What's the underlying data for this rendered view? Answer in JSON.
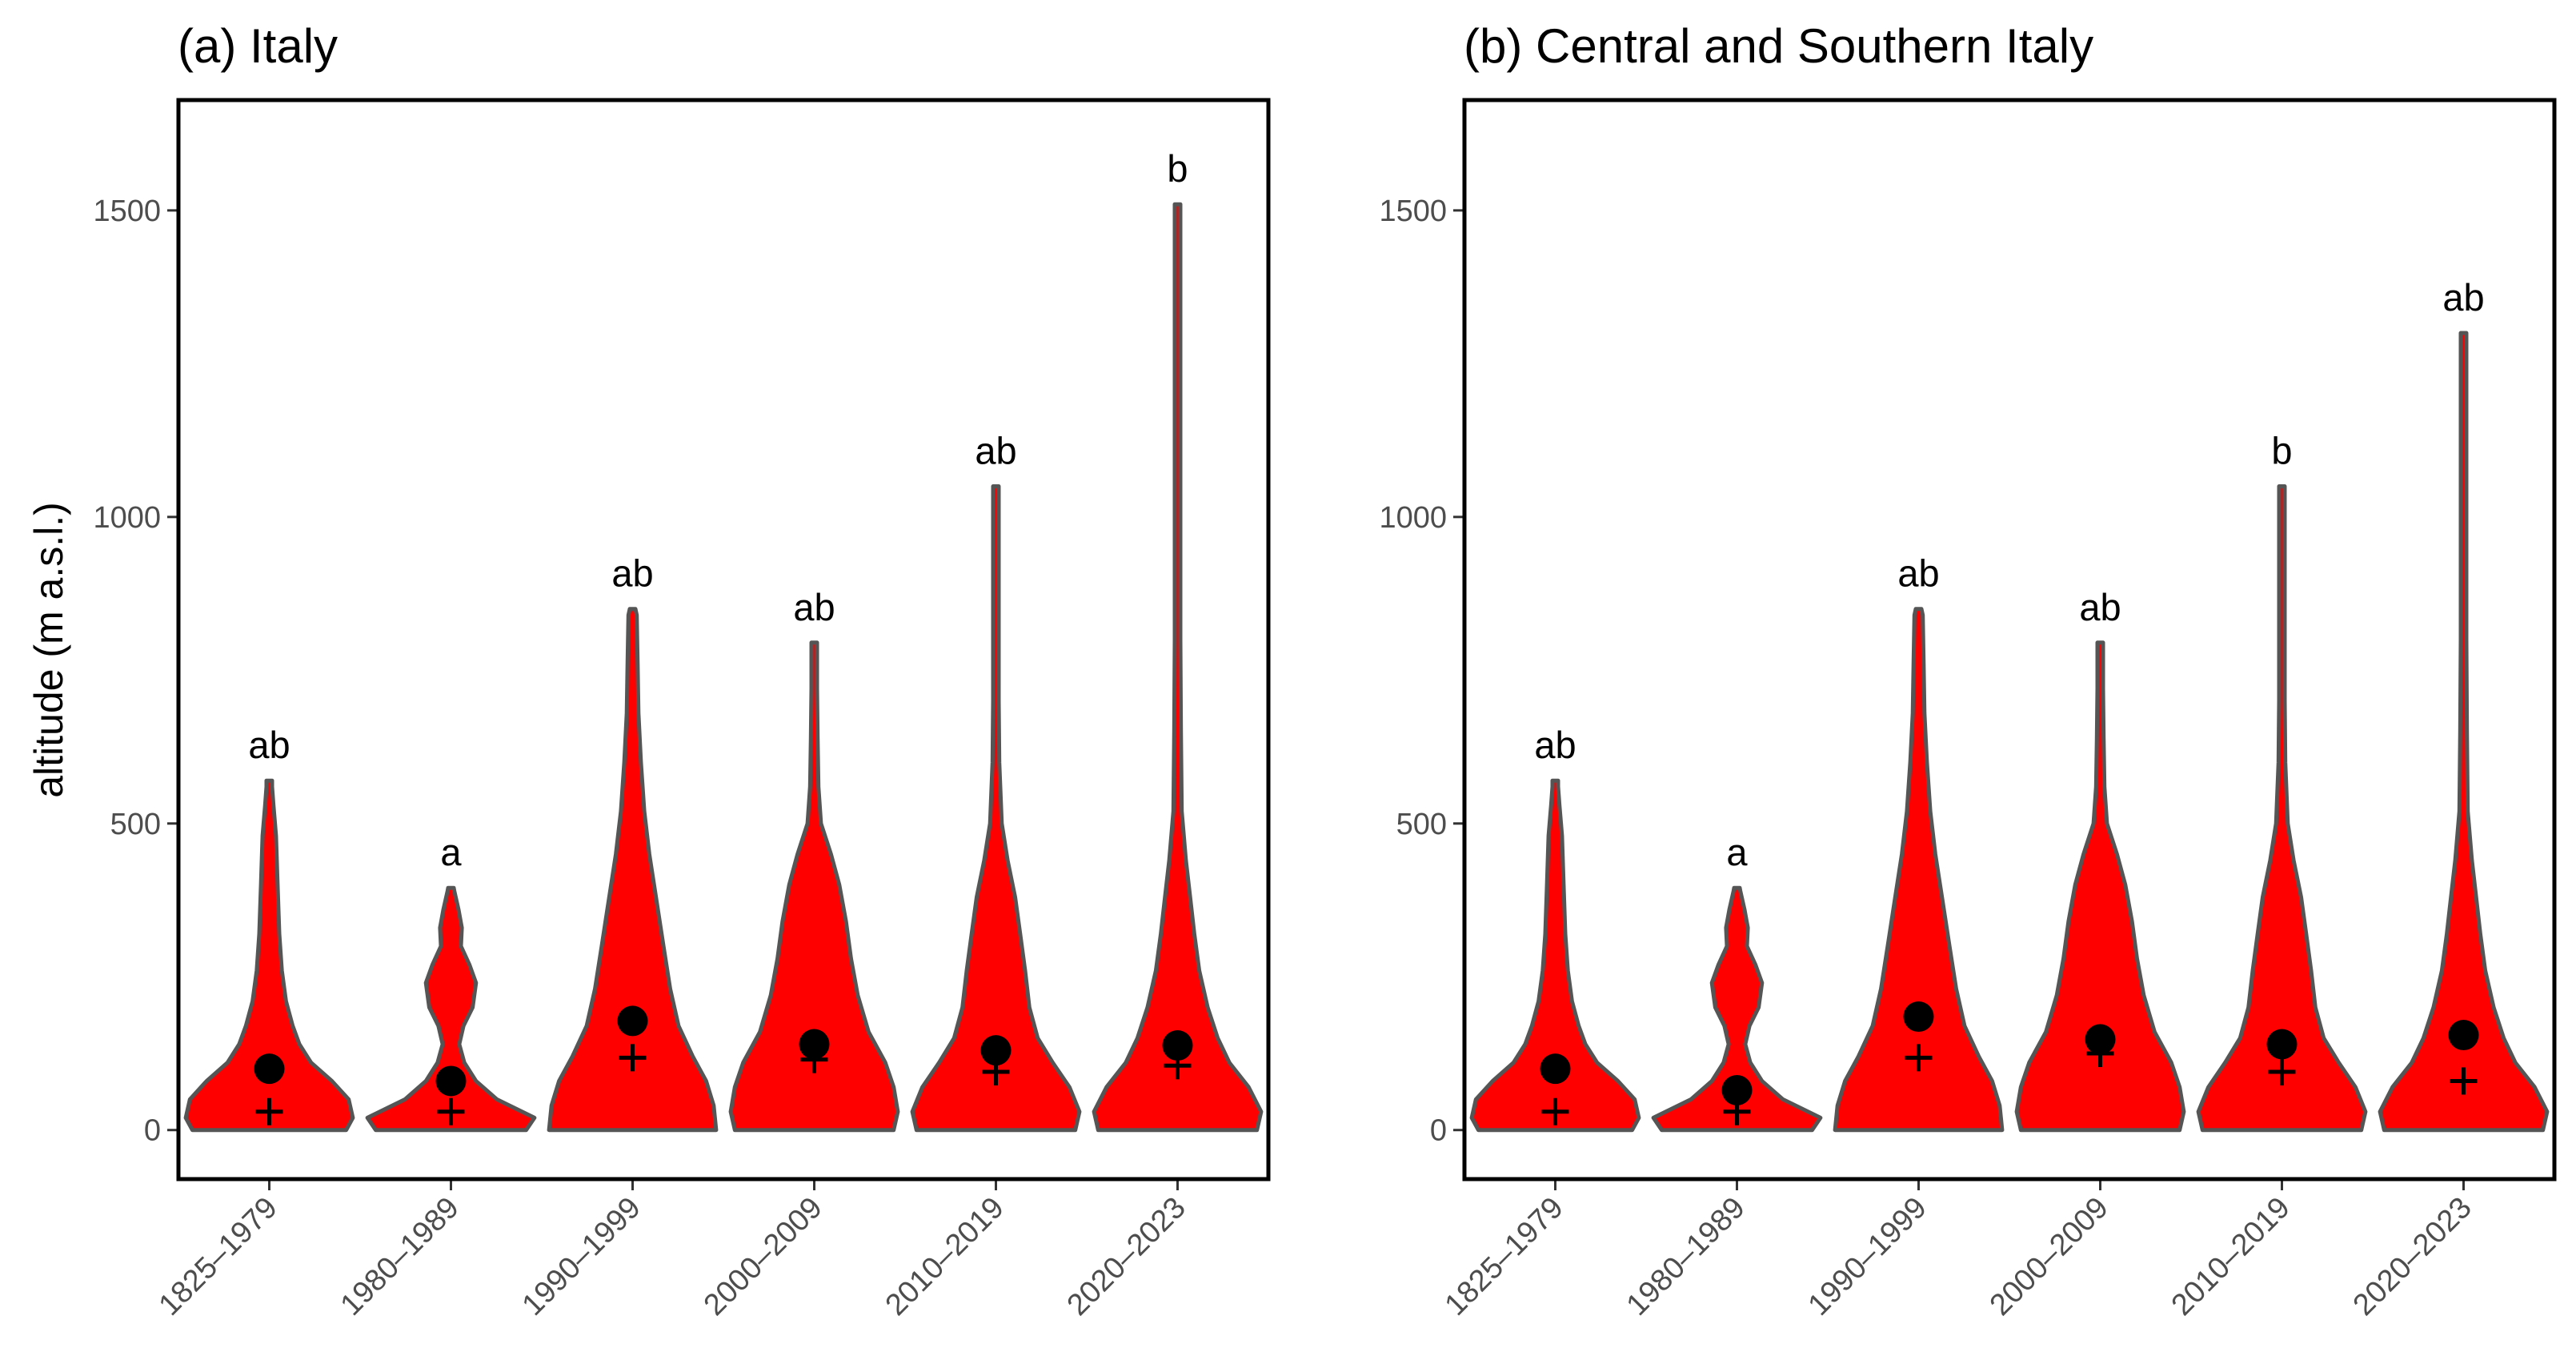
{
  "colors": {
    "violin_fill": "#ff0000",
    "violin_outline": "#555555",
    "marker": "#000000",
    "tick_text": "#4d4d4d"
  },
  "chart_data": [
    {
      "type": "violin",
      "title": "(a) Italy",
      "xlabel": "",
      "ylabel": "altitude (m a.s.l.)",
      "ylim": [
        -80,
        1680
      ],
      "yticks": [
        0,
        500,
        1000,
        1500
      ],
      "categories": [
        "1825–1979",
        "1980–1989",
        "1990–1999",
        "2000–2009",
        "2010–2019",
        "2020–2023"
      ],
      "max": [
        570,
        395,
        850,
        795,
        1050,
        1510
      ],
      "mean": [
        100,
        80,
        178,
        140,
        130,
        138
      ],
      "median": [
        30,
        30,
        118,
        115,
        95,
        105
      ],
      "letters": [
        "ab",
        "a",
        "ab",
        "ab",
        "ab",
        "b"
      ],
      "density_profiles": [
        [
          [
            0,
            0.92
          ],
          [
            20,
            1
          ],
          [
            50,
            0.95
          ],
          [
            80,
            0.75
          ],
          [
            110,
            0.5
          ],
          [
            140,
            0.36
          ],
          [
            170,
            0.28
          ],
          [
            210,
            0.2
          ],
          [
            260,
            0.15
          ],
          [
            320,
            0.12
          ],
          [
            400,
            0.1
          ],
          [
            480,
            0.08
          ],
          [
            530,
            0.05
          ],
          [
            560,
            0.03
          ],
          [
            570,
            0
          ]
        ],
        [
          [
            0,
            0.9
          ],
          [
            20,
            1
          ],
          [
            50,
            0.55
          ],
          [
            80,
            0.3
          ],
          [
            110,
            0.16
          ],
          [
            140,
            0.1
          ],
          [
            170,
            0.15
          ],
          [
            200,
            0.26
          ],
          [
            240,
            0.3
          ],
          [
            270,
            0.22
          ],
          [
            300,
            0.12
          ],
          [
            330,
            0.13
          ],
          [
            360,
            0.09
          ],
          [
            390,
            0.04
          ],
          [
            395,
            0
          ]
        ],
        [
          [
            0,
            1
          ],
          [
            40,
            0.97
          ],
          [
            80,
            0.88
          ],
          [
            120,
            0.72
          ],
          [
            170,
            0.55
          ],
          [
            230,
            0.45
          ],
          [
            300,
            0.37
          ],
          [
            380,
            0.28
          ],
          [
            450,
            0.2
          ],
          [
            520,
            0.14
          ],
          [
            600,
            0.1
          ],
          [
            680,
            0.07
          ],
          [
            760,
            0.06
          ],
          [
            840,
            0.05
          ],
          [
            850,
            0
          ]
        ],
        [
          [
            0,
            0.95
          ],
          [
            30,
            1
          ],
          [
            70,
            0.95
          ],
          [
            110,
            0.85
          ],
          [
            160,
            0.65
          ],
          [
            220,
            0.52
          ],
          [
            280,
            0.44
          ],
          [
            340,
            0.38
          ],
          [
            400,
            0.3
          ],
          [
            450,
            0.2
          ],
          [
            500,
            0.08
          ],
          [
            560,
            0.05
          ],
          [
            640,
            0.04
          ],
          [
            720,
            0.03
          ],
          [
            795,
            0
          ]
        ],
        [
          [
            0,
            0.95
          ],
          [
            30,
            1
          ],
          [
            70,
            0.88
          ],
          [
            110,
            0.68
          ],
          [
            150,
            0.5
          ],
          [
            200,
            0.4
          ],
          [
            260,
            0.35
          ],
          [
            320,
            0.29
          ],
          [
            380,
            0.23
          ],
          [
            440,
            0.14
          ],
          [
            500,
            0.07
          ],
          [
            600,
            0.04
          ],
          [
            700,
            0.03
          ],
          [
            850,
            0.025
          ],
          [
            950,
            0.02
          ],
          [
            1050,
            0
          ]
        ],
        [
          [
            0,
            0.95
          ],
          [
            30,
            1
          ],
          [
            70,
            0.85
          ],
          [
            110,
            0.62
          ],
          [
            150,
            0.48
          ],
          [
            200,
            0.36
          ],
          [
            260,
            0.26
          ],
          [
            320,
            0.2
          ],
          [
            380,
            0.15
          ],
          [
            440,
            0.1
          ],
          [
            520,
            0.05
          ],
          [
            650,
            0.04
          ],
          [
            800,
            0.03
          ],
          [
            1000,
            0.025
          ],
          [
            1200,
            0.02
          ],
          [
            1400,
            0.015
          ],
          [
            1510,
            0
          ]
        ]
      ]
    },
    {
      "type": "violin",
      "title": "(b) Central and Southern Italy",
      "xlabel": "",
      "ylabel": "",
      "ylim": [
        -80,
        1680
      ],
      "yticks": [
        0,
        500,
        1000,
        1500
      ],
      "categories": [
        "1825–1979",
        "1980–1989",
        "1990–1999",
        "2000–2009",
        "2010–2019",
        "2020–2023"
      ],
      "max": [
        570,
        395,
        850,
        795,
        1050,
        1300
      ],
      "mean": [
        100,
        65,
        185,
        148,
        140,
        155
      ],
      "median": [
        30,
        30,
        118,
        125,
        95,
        80
      ],
      "letters": [
        "ab",
        "a",
        "ab",
        "ab",
        "b",
        "ab"
      ],
      "density_profiles": [
        [
          [
            0,
            0.92
          ],
          [
            20,
            1
          ],
          [
            50,
            0.95
          ],
          [
            80,
            0.75
          ],
          [
            110,
            0.5
          ],
          [
            140,
            0.36
          ],
          [
            170,
            0.28
          ],
          [
            210,
            0.2
          ],
          [
            260,
            0.15
          ],
          [
            320,
            0.12
          ],
          [
            400,
            0.1
          ],
          [
            480,
            0.08
          ],
          [
            530,
            0.05
          ],
          [
            560,
            0.03
          ],
          [
            570,
            0
          ]
        ],
        [
          [
            0,
            0.9
          ],
          [
            20,
            1
          ],
          [
            50,
            0.55
          ],
          [
            80,
            0.3
          ],
          [
            110,
            0.16
          ],
          [
            140,
            0.1
          ],
          [
            170,
            0.15
          ],
          [
            200,
            0.26
          ],
          [
            240,
            0.3
          ],
          [
            270,
            0.22
          ],
          [
            300,
            0.12
          ],
          [
            330,
            0.13
          ],
          [
            360,
            0.09
          ],
          [
            390,
            0.04
          ],
          [
            395,
            0
          ]
        ],
        [
          [
            0,
            1
          ],
          [
            40,
            0.97
          ],
          [
            80,
            0.88
          ],
          [
            120,
            0.72
          ],
          [
            170,
            0.55
          ],
          [
            230,
            0.45
          ],
          [
            300,
            0.37
          ],
          [
            380,
            0.28
          ],
          [
            450,
            0.2
          ],
          [
            520,
            0.14
          ],
          [
            600,
            0.1
          ],
          [
            680,
            0.07
          ],
          [
            760,
            0.06
          ],
          [
            840,
            0.05
          ],
          [
            850,
            0
          ]
        ],
        [
          [
            0,
            0.95
          ],
          [
            30,
            1
          ],
          [
            70,
            0.95
          ],
          [
            110,
            0.85
          ],
          [
            160,
            0.65
          ],
          [
            220,
            0.52
          ],
          [
            280,
            0.44
          ],
          [
            340,
            0.38
          ],
          [
            400,
            0.3
          ],
          [
            450,
            0.2
          ],
          [
            500,
            0.08
          ],
          [
            560,
            0.05
          ],
          [
            640,
            0.04
          ],
          [
            720,
            0.03
          ],
          [
            795,
            0
          ]
        ],
        [
          [
            0,
            0.95
          ],
          [
            30,
            1
          ],
          [
            70,
            0.88
          ],
          [
            110,
            0.68
          ],
          [
            150,
            0.5
          ],
          [
            200,
            0.4
          ],
          [
            260,
            0.35
          ],
          [
            320,
            0.29
          ],
          [
            380,
            0.23
          ],
          [
            440,
            0.14
          ],
          [
            500,
            0.07
          ],
          [
            600,
            0.04
          ],
          [
            700,
            0.03
          ],
          [
            850,
            0.025
          ],
          [
            950,
            0.02
          ],
          [
            1050,
            0
          ]
        ],
        [
          [
            0,
            0.95
          ],
          [
            30,
            1
          ],
          [
            70,
            0.85
          ],
          [
            110,
            0.62
          ],
          [
            150,
            0.48
          ],
          [
            200,
            0.36
          ],
          [
            260,
            0.26
          ],
          [
            320,
            0.2
          ],
          [
            380,
            0.15
          ],
          [
            440,
            0.1
          ],
          [
            520,
            0.05
          ],
          [
            650,
            0.04
          ],
          [
            800,
            0.03
          ],
          [
            1000,
            0.025
          ],
          [
            1200,
            0.02
          ],
          [
            1300,
            0
          ]
        ]
      ]
    }
  ]
}
